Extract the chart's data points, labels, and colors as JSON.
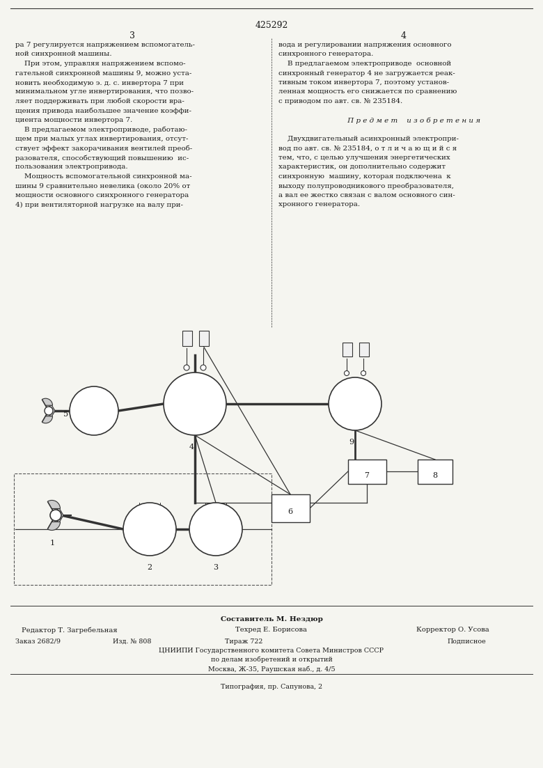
{
  "patent_number": "425292",
  "page_numbers": [
    "3",
    "4"
  ],
  "col1_text": [
    "ра 7 регулируется напряжением вспомогатель-",
    "ной синхронной машины.",
    "    При этом, управляя напряжением вспомо-",
    "гательной синхронной машины 9, можно уста-",
    "новить необходимую э. д. с. инвертора 7 при",
    "минимальном угле инвертирования, что позво-",
    "ляет поддерживать при любой скорости вра-",
    "щения привода наибольшее значение коэффи-",
    "циента мощности инвертора 7.",
    "    В предлагаемом электроприводе, работаю-",
    "щем при малых углах инвертирования, отсут-",
    "ствует эффект закорачивания вентилей преоб-",
    "разователя, способствующий повышению  ис-",
    "пользования электропривода.",
    "    Мощность вспомогательной синхронной ма-",
    "шины 9 сравнительно невелика (около 20% от",
    "мощности основного синхронного генератора",
    "4) при вентиляторной нагрузке на валу при-"
  ],
  "col2_text": [
    "вода и регулировании напряжения основного",
    "синхронного генератора.",
    "    В предлагаемом электроприводе  основной",
    "синхронный генератор 4 не загружается реак-",
    "тивным током инвертора 7, поэтому установ-",
    "ленная мощность его снижается по сравнению",
    "с приводом по авт. св. № 235184.",
    "",
    "         П р е д м е т    и з о б р е т е н и я",
    "",
    "    Двухдвигательный асинхронный электропри-",
    "вод по авт. св. № 235184, о т л и ч а ю щ и й с я",
    "тем, что, с целью улучшения энергетических",
    "характеристик, он дополнительно содержит",
    "синхронную  машину, которая подключена  к",
    "выходу полупроводникового преобразователя,",
    "а вал ее жестко связан с валом основного син-",
    "хронного генератора."
  ],
  "footer_line1_bold": "Составитель М. Нездюр",
  "footer_editor": "Редактор Т. Загребельная",
  "footer_tech": "Техред Е. Борисова",
  "footer_corrector": "Корректор О. Усова",
  "footer_order": "Заказ 2682/9",
  "footer_izd": "Изд. № 808",
  "footer_tirazh": "Тираж 722",
  "footer_podpisnoe": "Подписное",
  "footer_org": "ЦНИИПИ Государственного комитета Совета Министров СССР",
  "footer_org2": "по делам изобретений и открытий",
  "footer_addr": "Москва, Ж-35, Раушская наб., д. 4/5",
  "footer_tipografia": "Типография, пр. Сапунова, 2",
  "bg_color": "#f5f5f0",
  "text_color": "#1a1a1a",
  "line_color": "#333333"
}
